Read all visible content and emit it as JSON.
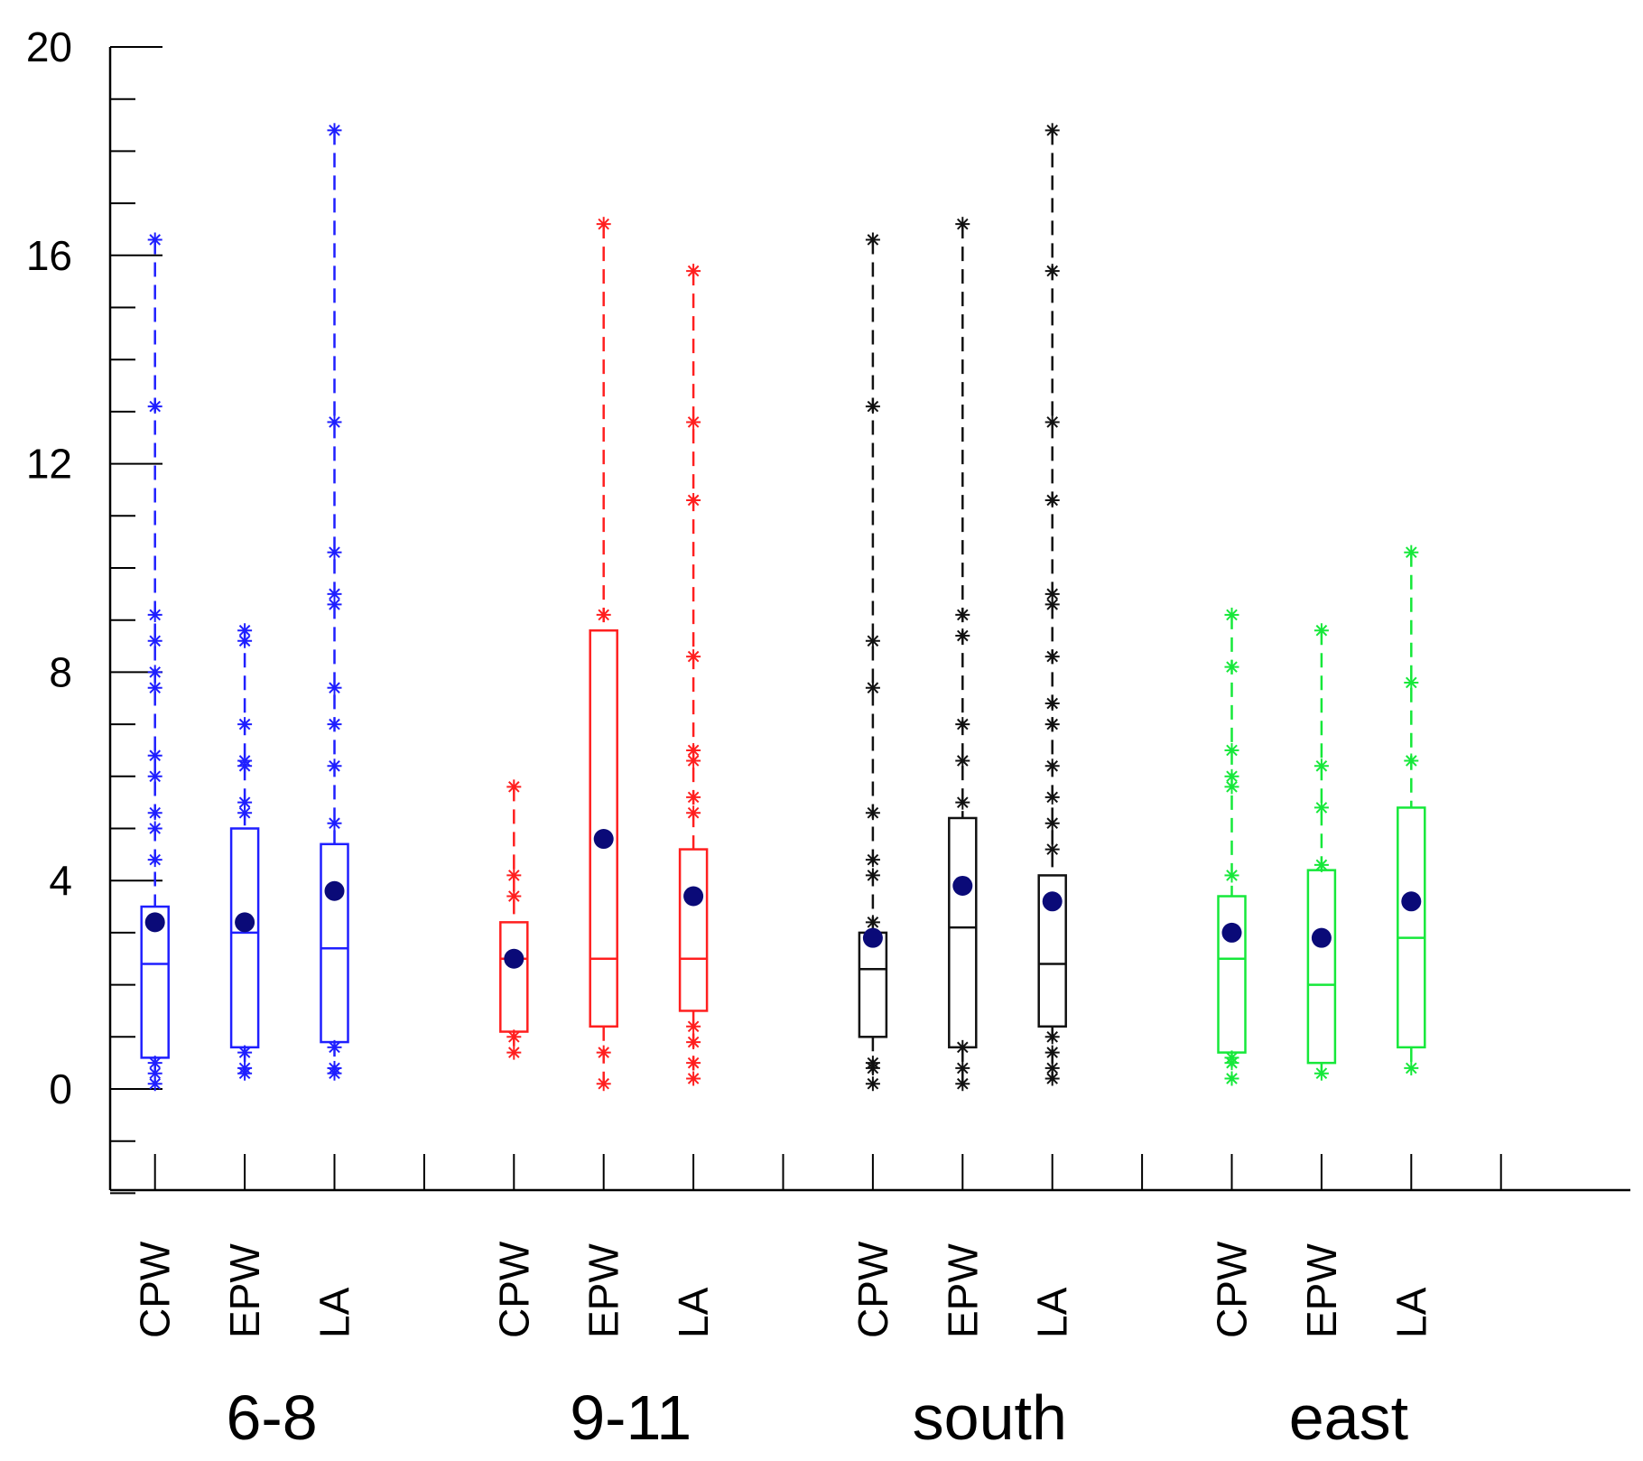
{
  "chart_data": {
    "type": "box",
    "title": "",
    "xlabel": "",
    "ylabel": "",
    "ylim": [
      -2,
      20
    ],
    "yticks": [
      0,
      4,
      8,
      12,
      16,
      20
    ],
    "ytick_labels": [
      "0",
      "4",
      "8",
      "12",
      "16",
      "20"
    ],
    "colors": {
      "6-8": "#1f1fff",
      "9-11": "#ff1f1f",
      "south": "#111111",
      "east": "#16e83a",
      "mean": "#0a0a78"
    },
    "groups": [
      {
        "name": "6-8",
        "boxes": [
          {
            "label": "CPW",
            "q1": 0.6,
            "median": 2.4,
            "q3": 3.5,
            "whisker_low": 0.1,
            "whisker_high": 16.3,
            "mean": 3.2,
            "outliers": [
              0.1,
              0.3,
              0.5,
              4.4,
              5.0,
              5.3,
              6.0,
              6.4,
              7.7,
              8.0,
              8.6,
              9.1,
              13.1,
              16.3
            ]
          },
          {
            "label": "EPW",
            "q1": 0.8,
            "median": 3.0,
            "q3": 5.0,
            "whisker_low": 0.3,
            "whisker_high": 8.8,
            "mean": 3.2,
            "outliers": [
              0.3,
              0.4,
              0.7,
              5.3,
              5.5,
              6.2,
              6.3,
              7.0,
              8.6,
              8.8
            ]
          },
          {
            "label": "LA",
            "q1": 0.9,
            "median": 2.7,
            "q3": 4.7,
            "whisker_low": 0.3,
            "whisker_high": 18.4,
            "mean": 3.8,
            "outliers": [
              0.3,
              0.4,
              0.8,
              5.1,
              6.2,
              7.0,
              7.7,
              9.3,
              9.5,
              10.3,
              12.8,
              18.4
            ]
          }
        ]
      },
      {
        "name": "9-11",
        "boxes": [
          {
            "label": "CPW",
            "q1": 1.1,
            "median": 2.5,
            "q3": 3.2,
            "whisker_low": 0.7,
            "whisker_high": 5.8,
            "mean": 2.5,
            "outliers": [
              0.7,
              1.0,
              3.7,
              4.1,
              5.8
            ]
          },
          {
            "label": "EPW",
            "q1": 1.2,
            "median": 2.5,
            "q3": 8.8,
            "whisker_low": 0.1,
            "whisker_high": 16.6,
            "mean": 4.8,
            "outliers": [
              0.1,
              0.7,
              9.1,
              16.6
            ]
          },
          {
            "label": "LA",
            "q1": 1.5,
            "median": 2.5,
            "q3": 4.6,
            "whisker_low": 0.2,
            "whisker_high": 15.7,
            "mean": 3.7,
            "outliers": [
              0.2,
              0.5,
              0.9,
              1.2,
              5.3,
              5.6,
              6.3,
              6.5,
              8.3,
              11.3,
              12.8,
              15.7
            ]
          }
        ]
      },
      {
        "name": "south",
        "boxes": [
          {
            "label": "CPW",
            "q1": 1.0,
            "median": 2.3,
            "q3": 3.0,
            "whisker_low": 0.1,
            "whisker_high": 16.3,
            "mean": 2.9,
            "outliers": [
              0.1,
              0.4,
              0.5,
              3.2,
              4.1,
              4.4,
              5.3,
              7.7,
              8.6,
              13.1,
              16.3
            ]
          },
          {
            "label": "EPW",
            "q1": 0.8,
            "median": 3.1,
            "q3": 5.2,
            "whisker_low": 0.1,
            "whisker_high": 16.6,
            "mean": 3.9,
            "outliers": [
              0.1,
              0.4,
              0.8,
              5.5,
              6.3,
              7.0,
              8.7,
              9.1,
              16.6
            ]
          },
          {
            "label": "LA",
            "q1": 1.2,
            "median": 2.4,
            "q3": 4.1,
            "whisker_low": 0.2,
            "whisker_high": 18.4,
            "mean": 3.6,
            "outliers": [
              0.2,
              0.4,
              0.7,
              1.0,
              4.6,
              5.1,
              5.6,
              6.2,
              7.0,
              7.4,
              8.3,
              9.3,
              9.5,
              11.3,
              12.8,
              15.7,
              18.4
            ]
          }
        ]
      },
      {
        "name": "east",
        "boxes": [
          {
            "label": "CPW",
            "q1": 0.7,
            "median": 2.5,
            "q3": 3.7,
            "whisker_low": 0.2,
            "whisker_high": 9.1,
            "mean": 3.0,
            "outliers": [
              0.2,
              0.5,
              0.6,
              4.1,
              5.8,
              6.0,
              6.5,
              8.1,
              9.1
            ]
          },
          {
            "label": "EPW",
            "q1": 0.5,
            "median": 2.0,
            "q3": 4.2,
            "whisker_low": 0.3,
            "whisker_high": 8.8,
            "mean": 2.9,
            "outliers": [
              0.3,
              4.3,
              5.4,
              6.2,
              8.8
            ]
          },
          {
            "label": "LA",
            "q1": 0.8,
            "median": 2.9,
            "q3": 5.4,
            "whisker_low": 0.4,
            "whisker_high": 10.3,
            "mean": 3.6,
            "outliers": [
              0.4,
              6.3,
              7.8,
              10.3
            ]
          }
        ]
      }
    ]
  }
}
